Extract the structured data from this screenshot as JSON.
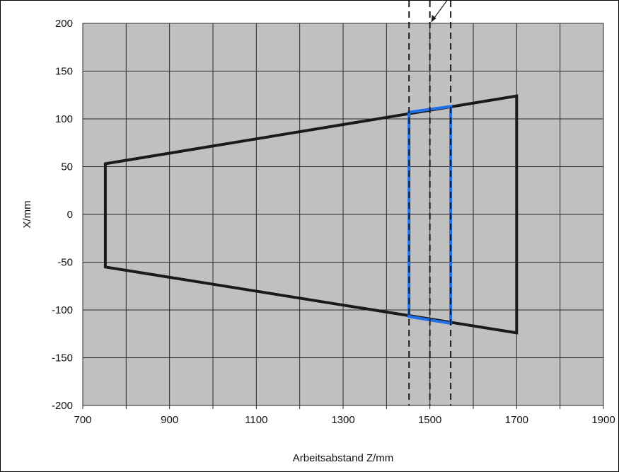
{
  "chart_data": {
    "type": "line",
    "title": "",
    "xlabel": "Arbeitsabstand Z/mm",
    "ylabel": "X/mm",
    "xlim": [
      700,
      1900
    ],
    "ylim": [
      -200,
      200
    ],
    "x_ticks": [
      700,
      900,
      1100,
      1300,
      1500,
      1700,
      1900
    ],
    "x_tick_labels": [
      "700",
      "900",
      "1100",
      "1300",
      "1500",
      "1700",
      "1900"
    ],
    "x_grid_step": 100,
    "y_ticks": [
      200,
      150,
      100,
      50,
      0,
      -50,
      -100,
      -150,
      -200
    ],
    "y_tick_labels": [
      "200",
      "150",
      "100",
      "50",
      "0",
      "-50",
      "-100",
      "-150",
      "-200"
    ],
    "y_grid_step": 50,
    "grid": true,
    "plot_background": "#c0c0c0",
    "series": [
      {
        "color": "#1a1a1a",
        "style": "solid",
        "closed": true,
        "points": [
          [
            752,
            53
          ],
          [
            1700,
            124
          ],
          [
            1700,
            -124
          ],
          [
            752,
            -55
          ]
        ]
      },
      {
        "color": "#1f6fe8",
        "style": "solid",
        "closed": true,
        "points": [
          [
            1452,
            107
          ],
          [
            1548,
            113
          ],
          [
            1548,
            -114
          ],
          [
            1452,
            -107
          ]
        ]
      }
    ],
    "reference_lines": [
      {
        "x": 1452,
        "style": "dashed",
        "color": "#1a1a1a"
      },
      {
        "x": 1500,
        "style": "dashed",
        "color": "#1a1a1a"
      },
      {
        "x": 1548,
        "style": "dashed",
        "color": "#1a1a1a"
      }
    ],
    "annotation_leader": {
      "target": [
        1500,
        200
      ],
      "color": "#1a1a1a"
    }
  }
}
